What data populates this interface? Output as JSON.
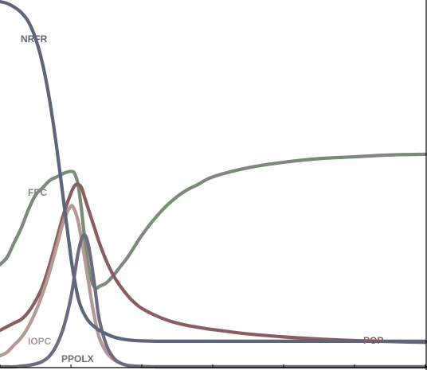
{
  "chart_data": {
    "type": "line",
    "title": "",
    "xlabel": "",
    "ylabel": "",
    "xlim": [
      0,
      6
    ],
    "ylim": [
      0,
      1
    ],
    "grid": false,
    "legend": "none (series labelled inline)",
    "x": [
      0.0,
      0.1,
      0.2,
      0.3,
      0.4,
      0.5,
      0.6,
      0.7,
      0.8,
      0.9,
      1.0,
      1.05,
      1.1,
      1.15,
      1.2,
      1.25,
      1.3,
      1.35,
      1.4,
      1.5,
      1.6,
      1.7,
      1.8,
      1.9,
      2.0,
      2.2,
      2.4,
      2.6,
      2.8,
      3.0,
      3.5,
      4.0,
      4.5,
      5.0,
      5.5,
      6.0
    ],
    "series": [
      {
        "name": "NRFR",
        "color": "#5c6579",
        "values": [
          1.0,
          0.995,
          0.985,
          0.97,
          0.945,
          0.9,
          0.83,
          0.73,
          0.6,
          0.45,
          0.3,
          0.24,
          0.19,
          0.16,
          0.14,
          0.125,
          0.115,
          0.107,
          0.1,
          0.09,
          0.082,
          0.077,
          0.074,
          0.072,
          0.071,
          0.07,
          0.07,
          0.07,
          0.07,
          0.07,
          0.07,
          0.07,
          0.07,
          0.07,
          0.07,
          0.07
        ]
      },
      {
        "name": "FPC",
        "color": "#7a8b78",
        "values": [
          0.28,
          0.3,
          0.34,
          0.38,
          0.43,
          0.47,
          0.49,
          0.51,
          0.52,
          0.53,
          0.535,
          0.53,
          0.5,
          0.43,
          0.34,
          0.27,
          0.23,
          0.215,
          0.22,
          0.23,
          0.25,
          0.275,
          0.3,
          0.33,
          0.36,
          0.41,
          0.45,
          0.48,
          0.5,
          0.52,
          0.545,
          0.56,
          0.57,
          0.575,
          0.58,
          0.582
        ]
      },
      {
        "name": "POP",
        "color": "#8a5e5e",
        "values": [
          0.1,
          0.11,
          0.12,
          0.13,
          0.15,
          0.18,
          0.22,
          0.28,
          0.35,
          0.42,
          0.475,
          0.495,
          0.5,
          0.49,
          0.46,
          0.43,
          0.4,
          0.37,
          0.34,
          0.29,
          0.25,
          0.22,
          0.195,
          0.175,
          0.16,
          0.14,
          0.125,
          0.115,
          0.108,
          0.102,
          0.09,
          0.082,
          0.076,
          0.072,
          0.069,
          0.067
        ]
      },
      {
        "name": "IOPC",
        "color": "#b39a94",
        "values": [
          0.03,
          0.04,
          0.06,
          0.08,
          0.11,
          0.15,
          0.2,
          0.26,
          0.33,
          0.4,
          0.44,
          0.43,
          0.4,
          0.35,
          0.29,
          0.23,
          0.17,
          0.12,
          0.08,
          0.04,
          0.02,
          0.01,
          0.004,
          0.002,
          0.001,
          0.0,
          0.0,
          0.0,
          0.0,
          0.0,
          0.0,
          0.0,
          0.0,
          0.0,
          0.0,
          0.0
        ]
      },
      {
        "name": "PPOLX",
        "color": "#6f6a80",
        "values": [
          0.0,
          0.0,
          0.0,
          0.002,
          0.004,
          0.008,
          0.015,
          0.03,
          0.06,
          0.11,
          0.19,
          0.25,
          0.31,
          0.35,
          0.36,
          0.33,
          0.27,
          0.2,
          0.13,
          0.06,
          0.025,
          0.01,
          0.004,
          0.002,
          0.001,
          0.0,
          0.0,
          0.0,
          0.0,
          0.0,
          0.0,
          0.0,
          0.0,
          0.0,
          0.0,
          0.0
        ]
      }
    ]
  }
}
